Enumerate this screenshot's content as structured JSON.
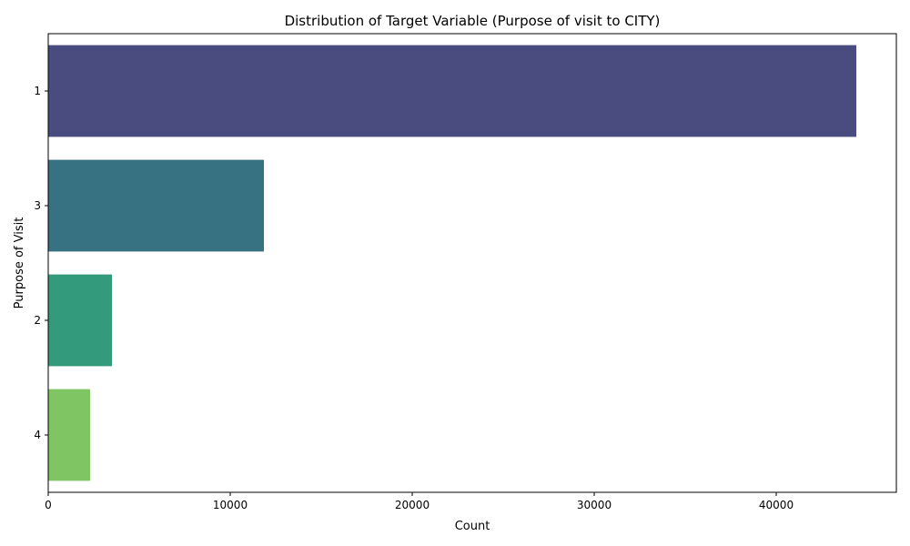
{
  "chart_data": {
    "type": "bar",
    "orientation": "horizontal",
    "title": "Distribution of Target Variable (Purpose of visit to CITY)",
    "xlabel": "Count",
    "ylabel": "Purpose of Visit",
    "categories": [
      "1",
      "3",
      "2",
      "4"
    ],
    "values": [
      44400,
      11850,
      3500,
      2300
    ],
    "colors": [
      "#4a4b7e",
      "#377282",
      "#339a7b",
      "#80c563"
    ],
    "xlim": [
      0,
      46600
    ],
    "xticks": [
      0,
      10000,
      20000,
      30000,
      40000
    ],
    "xtick_labels": [
      "0",
      "10000",
      "20000",
      "30000",
      "40000"
    ],
    "grid": false,
    "legend": "none"
  }
}
